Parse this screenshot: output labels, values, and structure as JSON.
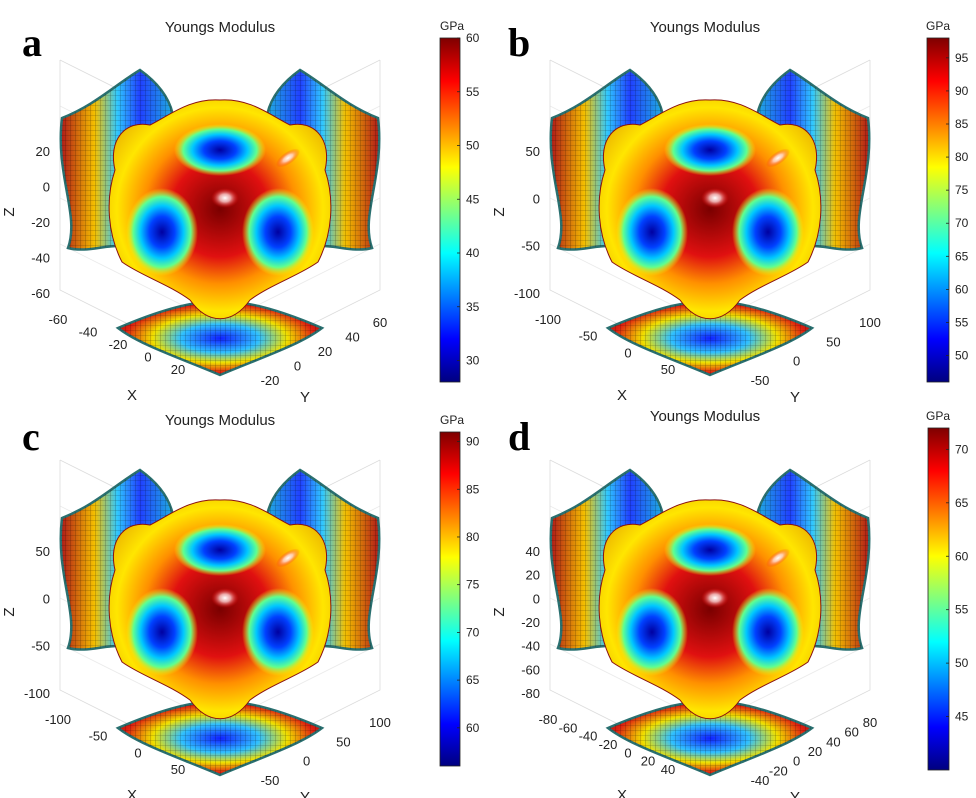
{
  "figure": {
    "colormap": [
      "#00007f",
      "#0000ff",
      "#007fff",
      "#00ffff",
      "#7fff7f",
      "#ffff00",
      "#ff7f00",
      "#ff0000",
      "#7f0000"
    ]
  },
  "chart_data": [
    {
      "type": "surface3d",
      "panel_label": "a",
      "title": "Youngs Modulus",
      "colorbar_label": "GPa",
      "colorbar_range": [
        28,
        60
      ],
      "colorbar_ticks": [
        "30",
        "35",
        "40",
        "45",
        "50",
        "55",
        "60"
      ],
      "z_ticks": [
        "20",
        "0",
        "-20",
        "-40",
        "-60"
      ],
      "x_ticks": [
        "-60",
        "-40",
        "-20",
        "0",
        "20"
      ],
      "y_ticks": [
        "-20",
        "0",
        "20",
        "40",
        "60"
      ],
      "xlabel": "X",
      "ylabel": "Y",
      "zlabel": "Z"
    },
    {
      "type": "surface3d",
      "panel_label": "b",
      "title": "Youngs Modulus",
      "colorbar_label": "GPa",
      "colorbar_range": [
        46,
        98
      ],
      "colorbar_ticks": [
        "50",
        "55",
        "60",
        "65",
        "70",
        "75",
        "80",
        "85",
        "90",
        "95"
      ],
      "z_ticks": [
        "50",
        "0",
        "-50",
        "-100"
      ],
      "x_ticks": [
        "-100",
        "-50",
        "0",
        "50"
      ],
      "y_ticks": [
        "-50",
        "0",
        "50",
        "100"
      ],
      "xlabel": "X",
      "ylabel": "Y",
      "zlabel": "Z"
    },
    {
      "type": "surface3d",
      "panel_label": "c",
      "title": "Youngs Modulus",
      "colorbar_label": "GPa",
      "colorbar_range": [
        56,
        91
      ],
      "colorbar_ticks": [
        "60",
        "65",
        "70",
        "75",
        "80",
        "85",
        "90"
      ],
      "z_ticks": [
        "50",
        "0",
        "-50",
        "-100"
      ],
      "x_ticks": [
        "-100",
        "-50",
        "0",
        "50"
      ],
      "y_ticks": [
        "-50",
        "0",
        "50",
        "100"
      ],
      "xlabel": "X",
      "ylabel": "Y",
      "zlabel": "Z"
    },
    {
      "type": "surface3d",
      "panel_label": "d",
      "title": "Youngs Modulus",
      "colorbar_label": "GPa",
      "colorbar_range": [
        40,
        72
      ],
      "colorbar_ticks": [
        "45",
        "50",
        "55",
        "60",
        "65",
        "70"
      ],
      "z_ticks": [
        "40",
        "20",
        "0",
        "-20",
        "-40",
        "-60",
        "-80"
      ],
      "x_ticks": [
        "-80",
        "-60",
        "-40",
        "-20",
        "0",
        "20",
        "40"
      ],
      "y_ticks": [
        "-40",
        "-20",
        "0",
        "20",
        "40",
        "60",
        "80"
      ],
      "xlabel": "X",
      "ylabel": "Y",
      "zlabel": "Z"
    }
  ]
}
